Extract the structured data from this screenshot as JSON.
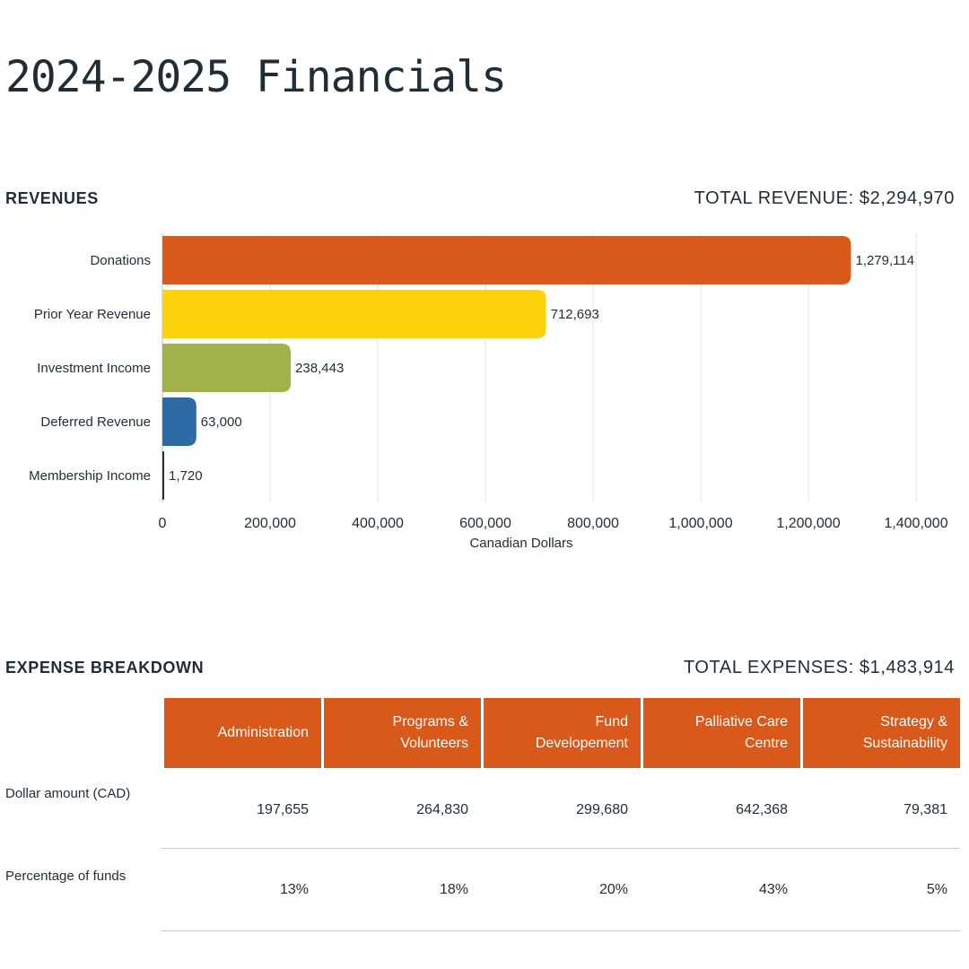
{
  "page": {
    "title": "2024-2025 Financials"
  },
  "revenues": {
    "label": "REVENUES",
    "total": "TOTAL REVENUE: $2,294,970"
  },
  "expenses": {
    "label": "EXPENSE BREAKDOWN",
    "total": "TOTAL EXPENSES: $1,483,914",
    "columns": [
      [
        "Administration"
      ],
      [
        "Programs &",
        "Volunteers"
      ],
      [
        "Fund",
        "Developement"
      ],
      [
        "Palliative Care",
        "Centre"
      ],
      [
        "Strategy &",
        "Sustainability"
      ]
    ],
    "rows": [
      {
        "label": "Dollar amount (CAD)",
        "values": [
          "197,655",
          "264,830",
          "299,680",
          "642,368",
          "79,381"
        ]
      },
      {
        "label": "Percentage of funds",
        "values": [
          "13%",
          "18%",
          "20%",
          "43%",
          "5%"
        ]
      }
    ]
  },
  "colors": {
    "text": "#1e2d36",
    "orange": "#d8591a",
    "yellow": "#fdd20b",
    "green": "#a2b14a",
    "blue": "#2d6aa6",
    "navy": "#1e2d36",
    "grid": "#e3e3e3"
  },
  "chart_data": {
    "type": "bar",
    "orientation": "horizontal",
    "title": "REVENUES",
    "xlabel": "Canadian Dollars",
    "ylabel": "",
    "categories": [
      "Donations",
      "Prior Year Revenue",
      "Investment Income",
      "Deferred Revenue",
      "Membership Income"
    ],
    "values": [
      1279114,
      712693,
      238443,
      63000,
      1720
    ],
    "value_labels": [
      "1,279,114",
      "712,693",
      "238,443",
      "63,000",
      "1,720"
    ],
    "bar_colors": [
      "#d8591a",
      "#fdd20b",
      "#a2b14a",
      "#2d6aa6",
      "#1e2d36"
    ],
    "xlim": [
      0,
      1400000
    ],
    "xticks": [
      0,
      200000,
      400000,
      600000,
      800000,
      1000000,
      1200000,
      1400000
    ],
    "xtick_labels": [
      "0",
      "200,000",
      "400,000",
      "600,000",
      "800,000",
      "1,000,000",
      "1,200,000",
      "1,400,000"
    ],
    "grid": true,
    "legend": "none"
  }
}
